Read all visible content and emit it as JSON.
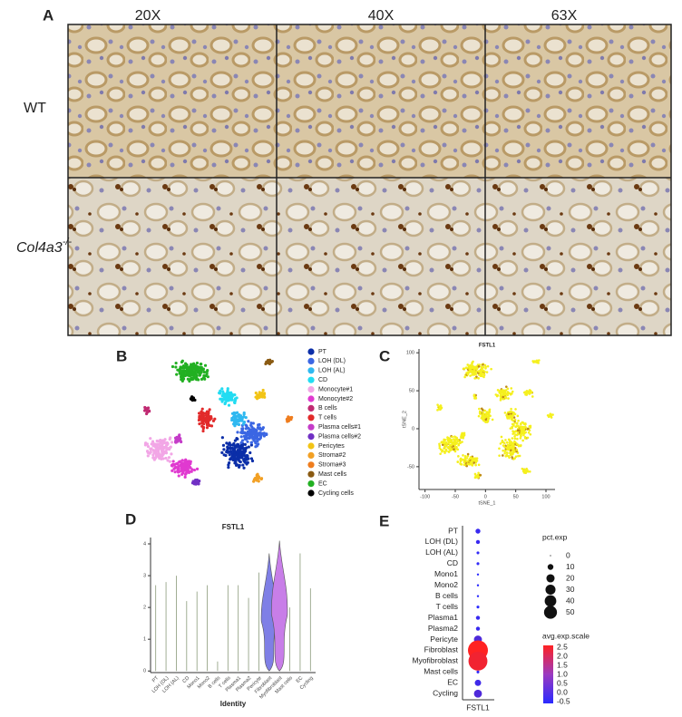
{
  "panel_a": {
    "label": "A",
    "columns": [
      "20X",
      "40X",
      "63X"
    ],
    "rows": [
      {
        "text": "WT"
      },
      {
        "text": "Col4a3",
        "superscript": "-/-"
      }
    ]
  },
  "panel_b": {
    "label": "B",
    "legend": [
      {
        "name": "PT",
        "color": "#0b2ea8"
      },
      {
        "name": "LOH (DL)",
        "color": "#3b66e3"
      },
      {
        "name": "LOH (AL)",
        "color": "#2fb8f0"
      },
      {
        "name": "CD",
        "color": "#22dcf2"
      },
      {
        "name": "Monocyte#1",
        "color": "#f2a6e6"
      },
      {
        "name": "Monocyte#2",
        "color": "#e03ad0"
      },
      {
        "name": "B cells",
        "color": "#c02a72"
      },
      {
        "name": "T cells",
        "color": "#e22a2a"
      },
      {
        "name": "Plasma cells#1",
        "color": "#c43cc8"
      },
      {
        "name": "Plasma cells#2",
        "color": "#7030c4"
      },
      {
        "name": "Pericytes",
        "color": "#f2c416"
      },
      {
        "name": "Stroma#2",
        "color": "#f2a024"
      },
      {
        "name": "Stroma#3",
        "color": "#ef7d1e"
      },
      {
        "name": "Mast cells",
        "color": "#8a5a12"
      },
      {
        "name": "EC",
        "color": "#22b022"
      },
      {
        "name": "Cycling cells",
        "color": "#000000"
      }
    ]
  },
  "panel_c": {
    "label": "C",
    "title": "FSTL1",
    "x_label": "tSNE_1",
    "y_label": "tSNE_2",
    "xticks": [
      -100,
      -50,
      0,
      50,
      100
    ],
    "yticks": [
      -50,
      0,
      50,
      100
    ],
    "xlim": [
      -110,
      115
    ],
    "ylim": [
      -80,
      105
    ]
  },
  "panel_d": {
    "label": "D",
    "title": "FSTL1",
    "x_label": "Identity",
    "yticks": [
      0,
      1,
      2,
      3,
      4
    ],
    "ylim": [
      -0.05,
      4.2
    ],
    "categories": [
      "PT",
      "LOH (DL)",
      "LOH (AL)",
      "CD",
      "Mono1",
      "Mono2",
      "B cells",
      "T cells",
      "Plasma1",
      "Plasma2",
      "Pericyte",
      "Fibroblast",
      "Myofibroblast",
      "Mast cells",
      "EC",
      "Cycling"
    ],
    "max_values": [
      2.7,
      2.8,
      3.0,
      2.2,
      2.5,
      2.7,
      0.3,
      2.7,
      2.7,
      2.3,
      3.1,
      3.7,
      4.1,
      2.0,
      3.7,
      2.6
    ]
  },
  "panel_e": {
    "label": "E",
    "x_label": "FSTL1",
    "rows": [
      "PT",
      "LOH (DL)",
      "LOH (AL)",
      "CD",
      "Mono1",
      "Mono2",
      "B cells",
      "T cells",
      "Plasma1",
      "Plasma2",
      "Pericyte",
      "Fibroblast",
      "Myofibroblast",
      "Mast cells",
      "EC",
      "Cycling"
    ],
    "pct_exp": [
      3,
      2,
      1,
      1,
      0.5,
      0.5,
      0.5,
      1,
      2,
      2,
      8,
      50,
      45,
      1,
      5,
      8
    ],
    "avg_exp_scale": [
      -0.3,
      -0.3,
      -0.4,
      -0.4,
      -0.5,
      -0.5,
      -0.5,
      -0.5,
      -0.3,
      -0.3,
      0,
      2.5,
      2.3,
      -0.4,
      -0.2,
      0
    ],
    "size_legend_title": "pct.exp",
    "size_legend": [
      0,
      10,
      20,
      30,
      40,
      50
    ],
    "color_legend_title": "avg.exp.scale",
    "color_legend": [
      "2.5",
      "2.0",
      "1.5",
      "1.0",
      "0.5",
      "0.0",
      "-0.5"
    ]
  }
}
